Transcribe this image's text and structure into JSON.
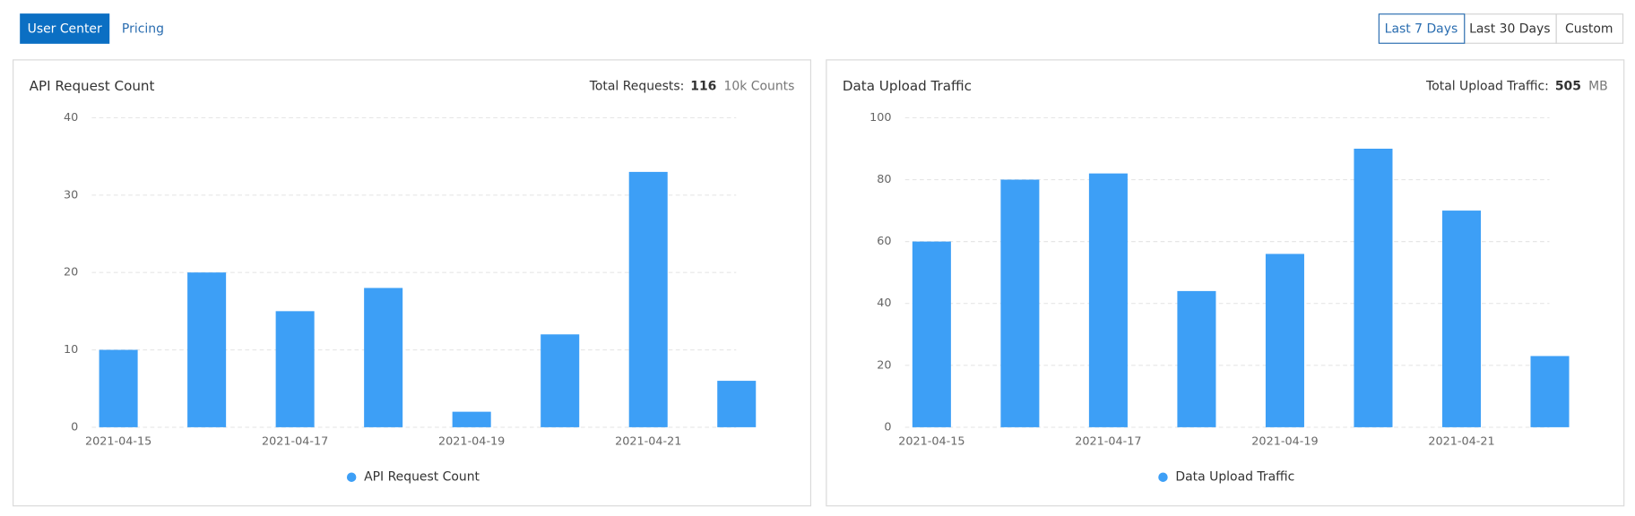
{
  "nav": {
    "tabs": [
      "User Center",
      "Pricing"
    ]
  },
  "range_buttons": [
    "Last 7 Days",
    "Last 30 Days",
    "Custom"
  ],
  "panels": [
    {
      "title": "API Request Count",
      "summary_label": "Total Requests:",
      "summary_value": 116,
      "summary_unit": "10k Counts",
      "chart_data": {
        "type": "bar",
        "categories": [
          "2021-04-15",
          null,
          "2021-04-17",
          null,
          "2021-04-19",
          null,
          "2021-04-21",
          null
        ],
        "series": [
          {
            "name": "API Request Count",
            "color": "#3d9ff6",
            "values": [
              10,
              20,
              15,
              18,
              2,
              12,
              33,
              6
            ]
          }
        ],
        "ylim": [
          0,
          40
        ],
        "yticks": [
          0,
          10,
          20,
          30,
          40
        ],
        "grid": true,
        "legend": "bottom"
      }
    },
    {
      "title": "Data Upload Traffic",
      "summary_label": "Total Upload Traffic:",
      "summary_value": 505,
      "summary_unit": "MB",
      "chart_data": {
        "type": "bar",
        "categories": [
          "2021-04-15",
          null,
          "2021-04-17",
          null,
          "2021-04-19",
          null,
          "2021-04-21",
          null
        ],
        "series": [
          {
            "name": "Data Upload Traffic",
            "color": "#3d9ff6",
            "values": [
              60,
              80,
              82,
              44,
              56,
              90,
              70,
              23
            ]
          }
        ],
        "ylim": [
          0,
          100
        ],
        "yticks": [
          0,
          20,
          40,
          60,
          80,
          100
        ],
        "grid": true,
        "legend": "bottom"
      }
    }
  ]
}
